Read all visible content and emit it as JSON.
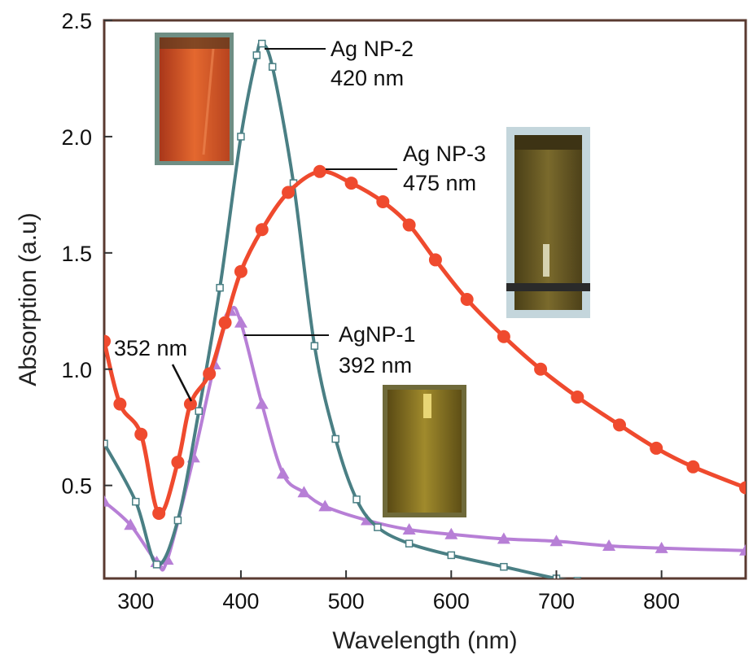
{
  "chart_data": {
    "type": "line",
    "xlabel": "Wavelength (nm)",
    "ylabel": "Absorption (a.u)",
    "xlim": [
      270,
      880
    ],
    "ylim": [
      0.1,
      2.5
    ],
    "x_ticks": [
      300,
      400,
      500,
      600,
      700,
      800
    ],
    "y_ticks": [
      0.5,
      1.0,
      1.5,
      2.0,
      2.5
    ],
    "x_tick_labels": [
      "300",
      "400",
      "500",
      "600",
      "700",
      "800"
    ],
    "y_tick_labels": [
      "0.5",
      "1.0",
      "1.5",
      "2.0",
      "2.5"
    ],
    "grid": false,
    "series": [
      {
        "name": "AgNP-1",
        "color": "#b77fd6",
        "marker": "triangle",
        "points": [
          [
            270,
            0.43
          ],
          [
            295,
            0.33
          ],
          [
            320,
            0.17
          ],
          [
            330,
            0.18
          ],
          [
            355,
            0.62
          ],
          [
            375,
            1.02
          ],
          [
            390,
            1.25
          ],
          [
            400,
            1.2
          ],
          [
            420,
            0.85
          ],
          [
            440,
            0.55
          ],
          [
            460,
            0.47
          ],
          [
            480,
            0.41
          ],
          [
            520,
            0.35
          ],
          [
            560,
            0.31
          ],
          [
            600,
            0.29
          ],
          [
            650,
            0.27
          ],
          [
            700,
            0.26
          ],
          [
            750,
            0.24
          ],
          [
            800,
            0.23
          ],
          [
            880,
            0.22
          ]
        ]
      },
      {
        "name": "Ag NP-2",
        "color": "#4a7f84",
        "marker": "square",
        "points": [
          [
            270,
            0.68
          ],
          [
            300,
            0.43
          ],
          [
            320,
            0.16
          ],
          [
            340,
            0.35
          ],
          [
            360,
            0.82
          ],
          [
            380,
            1.35
          ],
          [
            400,
            2.0
          ],
          [
            415,
            2.35
          ],
          [
            420,
            2.4
          ],
          [
            430,
            2.3
          ],
          [
            450,
            1.8
          ],
          [
            470,
            1.1
          ],
          [
            490,
            0.7
          ],
          [
            510,
            0.44
          ],
          [
            530,
            0.32
          ],
          [
            560,
            0.25
          ],
          [
            600,
            0.2
          ],
          [
            650,
            0.15
          ],
          [
            700,
            0.1
          ],
          [
            720,
            0.09
          ]
        ]
      },
      {
        "name": "Ag NP-3",
        "color": "#ef4a2e",
        "marker": "circle",
        "points": [
          [
            270,
            1.12
          ],
          [
            285,
            0.85
          ],
          [
            305,
            0.72
          ],
          [
            322,
            0.38
          ],
          [
            340,
            0.6
          ],
          [
            352,
            0.85
          ],
          [
            370,
            0.98
          ],
          [
            385,
            1.2
          ],
          [
            400,
            1.42
          ],
          [
            420,
            1.6
          ],
          [
            445,
            1.76
          ],
          [
            475,
            1.85
          ],
          [
            505,
            1.8
          ],
          [
            535,
            1.72
          ],
          [
            560,
            1.62
          ],
          [
            585,
            1.47
          ],
          [
            615,
            1.3
          ],
          [
            650,
            1.14
          ],
          [
            685,
            1.0
          ],
          [
            720,
            0.88
          ],
          [
            760,
            0.76
          ],
          [
            795,
            0.66
          ],
          [
            830,
            0.58
          ],
          [
            880,
            0.49
          ]
        ]
      }
    ],
    "annotations": [
      {
        "lines": [
          "Ag NP-2",
          "420 nm"
        ]
      },
      {
        "lines": [
          "Ag NP-3",
          "475 nm"
        ]
      },
      {
        "lines": [
          "AgNP-1",
          "392 nm"
        ]
      },
      {
        "lines": [
          "352 nm"
        ]
      }
    ],
    "insets": [
      {
        "name": "vial-ag-np-2",
        "color": "#c9522a"
      },
      {
        "name": "vial-ag-np-3",
        "color": "#6b5a22"
      },
      {
        "name": "vial-agnp-1",
        "color": "#7d6a1e"
      }
    ]
  }
}
